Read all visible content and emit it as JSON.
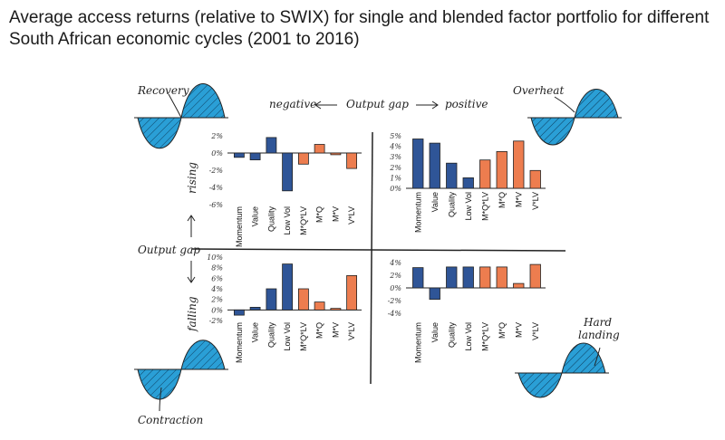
{
  "title": "Average access returns (relative to SWIX) for single and blended factor portfolio for different South African economic cycles (2001 to 2016)",
  "axis": {
    "negative": "negative",
    "output_gap_top": "Output gap",
    "positive": "positive",
    "output_gap_left": "Output gap",
    "rising": "rising",
    "falling": "falling"
  },
  "phases": {
    "recovery": "Recovery",
    "overheat": "Overheat",
    "contraction": "Contraction",
    "hard_landing": [
      "Hard",
      "landing"
    ]
  },
  "colors": {
    "single": "#2f5597",
    "blended": "#ed7d4f",
    "phase_fill": "#2a9fd6"
  },
  "chart_data": [
    {
      "type": "bar",
      "phase": "Recovery",
      "categories": [
        "Momentum",
        "Value",
        "Quality",
        "Low Vol",
        "M*Q*LV",
        "M*Q",
        "M*V",
        "V*LV"
      ],
      "values": [
        -0.5,
        -0.8,
        1.8,
        -4.4,
        -1.3,
        1.0,
        -0.2,
        -1.8
      ],
      "ylim": [
        -6,
        2
      ],
      "yticks": [
        "2%",
        "0%",
        "-2%",
        "-4%",
        "-6%"
      ],
      "ytick_values": [
        2,
        0,
        -2,
        -4,
        -6
      ]
    },
    {
      "type": "bar",
      "phase": "Overheat",
      "categories": [
        "Momentum",
        "Value",
        "Quality",
        "Low Vol",
        "M*Q*LV",
        "M*Q",
        "M*V",
        "V*LV"
      ],
      "values": [
        4.7,
        4.3,
        2.4,
        1.0,
        2.7,
        3.5,
        4.5,
        1.7
      ],
      "ylim": [
        0,
        5
      ],
      "yticks": [
        "5%",
        "4%",
        "3%",
        "2%",
        "1%",
        "0%"
      ],
      "ytick_values": [
        5,
        4,
        3,
        2,
        1,
        0
      ]
    },
    {
      "type": "bar",
      "phase": "Contraction",
      "categories": [
        "Momentum",
        "Value",
        "Quality",
        "Low Vol",
        "M*Q*LV",
        "M*Q",
        "M*V",
        "V*LV"
      ],
      "values": [
        -1.0,
        0.5,
        4.0,
        8.7,
        4.0,
        1.5,
        0.3,
        6.5
      ],
      "ylim": [
        -2,
        10
      ],
      "yticks": [
        "10%",
        "8%",
        "6%",
        "4%",
        "2%",
        "0%",
        "-2%"
      ],
      "ytick_values": [
        10,
        8,
        6,
        4,
        2,
        0,
        -2
      ]
    },
    {
      "type": "bar",
      "phase": "Hard landing",
      "categories": [
        "Momentum",
        "Value",
        "Quality",
        "Low Vol",
        "M*Q*LV",
        "M*Q",
        "M*V",
        "V*LV"
      ],
      "values": [
        3.2,
        -1.8,
        3.3,
        3.3,
        3.3,
        3.3,
        0.7,
        3.7
      ],
      "ylim": [
        -4,
        4
      ],
      "yticks": [
        "4%",
        "2%",
        "0%",
        "-2%",
        "-4%"
      ],
      "ytick_values": [
        4,
        2,
        0,
        -2,
        -4
      ]
    }
  ]
}
